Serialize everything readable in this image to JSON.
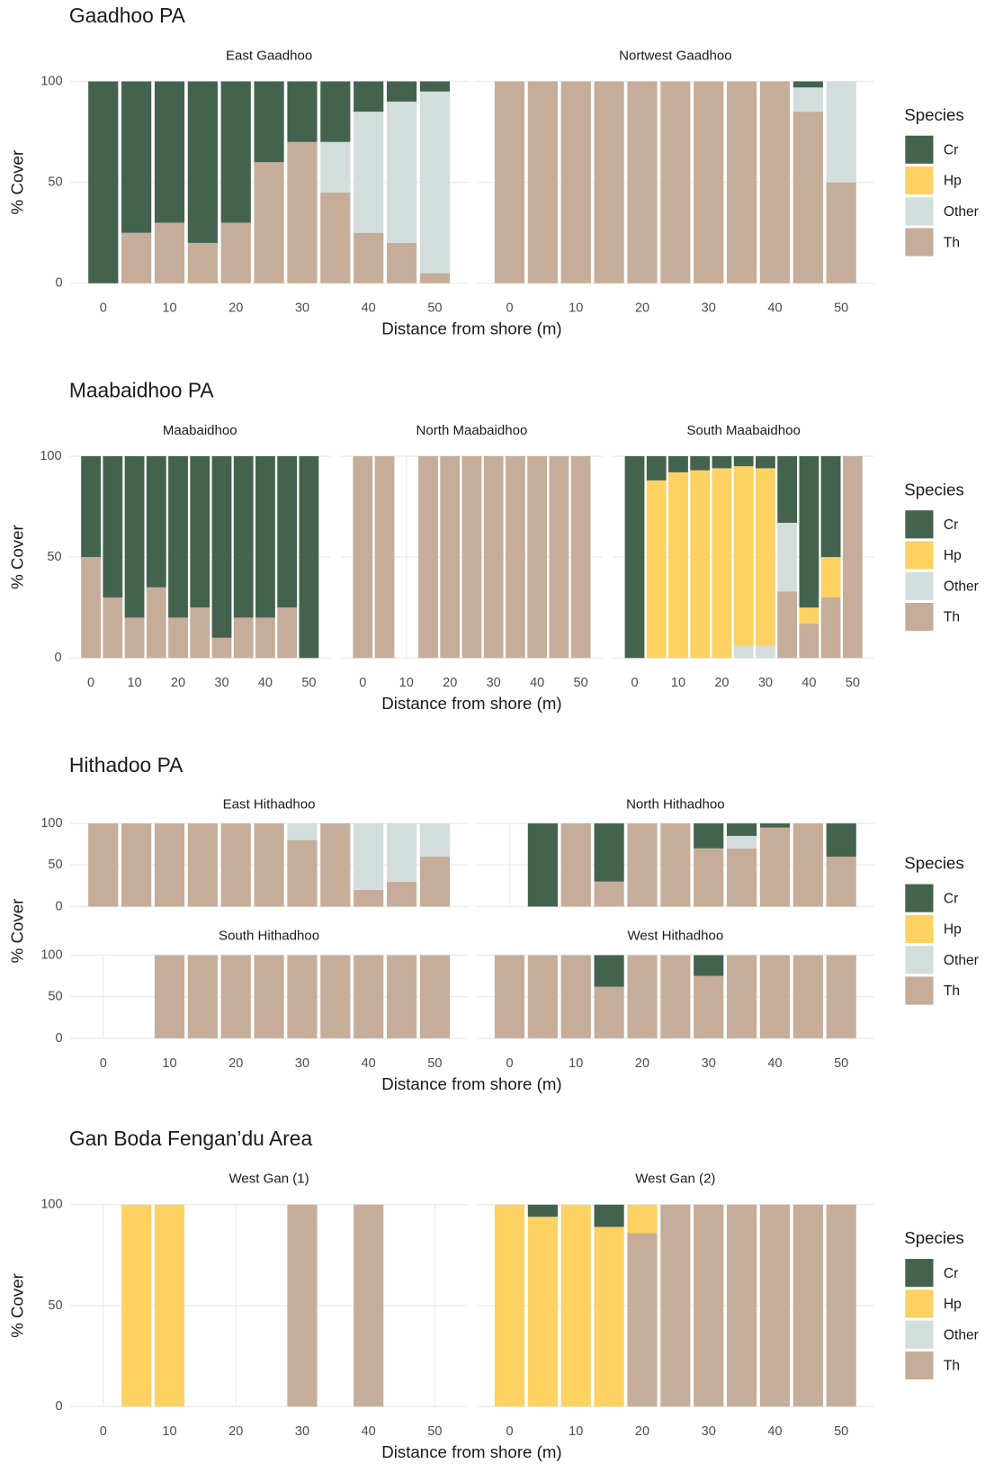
{
  "chart_data": [
    {
      "type": "stacked_bar",
      "title": "Gaadhoo PA",
      "x_label": "Distance from shore (m)",
      "y_label": "% Cover",
      "legend_title": "Species",
      "series": [
        {
          "name": "Cr",
          "color": "#44634f"
        },
        {
          "name": "Hp",
          "color": "#fdd162"
        },
        {
          "name": "Other",
          "color": "#d3dedc"
        },
        {
          "name": "Th",
          "color": "#c6ad99"
        }
      ],
      "xlim": [
        -5,
        55
      ],
      "xticks": [
        0,
        10,
        20,
        30,
        40,
        50
      ],
      "ylim": [
        0,
        100
      ],
      "yticks": [
        0,
        50,
        100
      ],
      "grid": true,
      "panels": [
        {
          "title": "East Gaadhoo",
          "x": [
            0,
            5,
            10,
            15,
            20,
            25,
            30,
            35,
            40,
            45,
            50
          ],
          "values": [
            [
              100,
              75,
              70,
              80,
              70,
              40,
              30,
              30,
              15,
              10,
              5
            ],
            [
              0,
              0,
              0,
              0,
              0,
              0,
              0,
              0,
              0,
              0,
              0
            ],
            [
              0,
              0,
              0,
              0,
              0,
              0,
              0,
              25,
              60,
              70,
              90
            ],
            [
              0,
              25,
              30,
              20,
              30,
              60,
              70,
              45,
              25,
              20,
              5
            ]
          ]
        },
        {
          "title": "Nortwest Gaadhoo",
          "x": [
            0,
            5,
            10,
            15,
            20,
            25,
            30,
            35,
            40,
            45,
            50
          ],
          "values": [
            [
              0,
              0,
              0,
              0,
              0,
              0,
              0,
              0,
              0,
              3,
              0
            ],
            [
              0,
              0,
              0,
              0,
              0,
              0,
              0,
              0,
              0,
              0,
              0
            ],
            [
              0,
              0,
              0,
              0,
              0,
              0,
              0,
              0,
              0,
              12,
              50
            ],
            [
              100,
              100,
              100,
              100,
              100,
              100,
              100,
              100,
              100,
              85,
              50
            ]
          ]
        }
      ]
    },
    {
      "type": "stacked_bar",
      "title": "Maabaidhoo PA",
      "x_label": "Distance from shore (m)",
      "y_label": "% Cover",
      "legend_title": "Species",
      "series": [
        {
          "name": "Cr",
          "color": "#44634f"
        },
        {
          "name": "Hp",
          "color": "#fdd162"
        },
        {
          "name": "Other",
          "color": "#d3dedc"
        },
        {
          "name": "Th",
          "color": "#c6ad99"
        }
      ],
      "xlim": [
        -5,
        55
      ],
      "xticks": [
        0,
        10,
        20,
        30,
        40,
        50
      ],
      "ylim": [
        0,
        100
      ],
      "yticks": [
        0,
        50,
        100
      ],
      "grid": true,
      "panels": [
        {
          "title": "Maabaidhoo",
          "x": [
            0,
            5,
            10,
            15,
            20,
            25,
            30,
            35,
            40,
            45,
            50
          ],
          "values": [
            [
              50,
              70,
              80,
              65,
              80,
              75,
              90,
              80,
              80,
              75,
              100
            ],
            [
              0,
              0,
              0,
              0,
              0,
              0,
              0,
              0,
              0,
              0,
              0
            ],
            [
              0,
              0,
              0,
              0,
              0,
              0,
              0,
              0,
              0,
              0,
              0
            ],
            [
              50,
              30,
              20,
              35,
              20,
              25,
              10,
              20,
              20,
              25,
              0
            ]
          ]
        },
        {
          "title": "North Maabaidhoo",
          "x": [
            0,
            5,
            10,
            15,
            20,
            25,
            30,
            35,
            40,
            45,
            50
          ],
          "values": [
            [
              0,
              0,
              null,
              0,
              0,
              0,
              0,
              0,
              0,
              0,
              0
            ],
            [
              0,
              0,
              null,
              0,
              0,
              0,
              0,
              0,
              0,
              0,
              0
            ],
            [
              0,
              0,
              null,
              0,
              0,
              0,
              0,
              0,
              0,
              0,
              0
            ],
            [
              100,
              100,
              null,
              100,
              100,
              100,
              100,
              100,
              100,
              100,
              100
            ]
          ]
        },
        {
          "title": "South Maabaidhoo",
          "x": [
            0,
            5,
            10,
            15,
            20,
            25,
            30,
            35,
            40,
            45,
            50
          ],
          "values": [
            [
              100,
              12,
              8,
              7,
              6,
              5,
              6,
              33,
              75,
              50,
              0
            ],
            [
              0,
              88,
              92,
              93,
              94,
              89,
              88,
              0,
              8,
              20,
              0
            ],
            [
              0,
              0,
              0,
              0,
              0,
              6,
              6,
              34,
              0,
              0,
              0
            ],
            [
              0,
              0,
              0,
              0,
              0,
              0,
              0,
              33,
              17,
              30,
              100
            ]
          ]
        }
      ]
    },
    {
      "type": "stacked_bar",
      "title": "Hithadoo PA",
      "x_label": "Distance from shore (m)",
      "y_label": "% Cover",
      "legend_title": "Species",
      "series": [
        {
          "name": "Cr",
          "color": "#44634f"
        },
        {
          "name": "Hp",
          "color": "#fdd162"
        },
        {
          "name": "Other",
          "color": "#d3dedc"
        },
        {
          "name": "Th",
          "color": "#c6ad99"
        }
      ],
      "xlim": [
        -5,
        55
      ],
      "xticks": [
        0,
        10,
        20,
        30,
        40,
        50
      ],
      "ylim": [
        0,
        100
      ],
      "yticks": [
        0,
        50,
        100
      ],
      "grid": true,
      "panels": [
        {
          "title": "East Hithadhoo",
          "x": [
            0,
            5,
            10,
            15,
            20,
            25,
            30,
            35,
            40,
            45,
            50
          ],
          "values": [
            [
              0,
              0,
              0,
              0,
              0,
              0,
              0,
              0,
              0,
              0,
              0
            ],
            [
              0,
              0,
              0,
              0,
              0,
              0,
              0,
              0,
              0,
              0,
              0
            ],
            [
              0,
              0,
              0,
              0,
              0,
              0,
              20,
              0,
              80,
              70,
              40
            ],
            [
              100,
              100,
              100,
              100,
              100,
              100,
              80,
              100,
              20,
              30,
              60
            ]
          ]
        },
        {
          "title": "North Hithadhoo",
          "x": [
            0,
            5,
            10,
            15,
            20,
            25,
            30,
            35,
            40,
            45,
            50
          ],
          "values": [
            [
              null,
              100,
              0,
              70,
              0,
              0,
              30,
              15,
              5,
              0,
              40
            ],
            [
              null,
              0,
              0,
              0,
              0,
              0,
              0,
              0,
              0,
              0,
              0
            ],
            [
              null,
              0,
              0,
              0,
              0,
              0,
              0,
              15,
              0,
              0,
              0
            ],
            [
              null,
              0,
              100,
              30,
              100,
              100,
              70,
              70,
              95,
              100,
              60
            ]
          ]
        },
        {
          "title": "South Hithadhoo",
          "x": [
            0,
            5,
            10,
            15,
            20,
            25,
            30,
            35,
            40,
            45,
            50
          ],
          "values": [
            [
              null,
              null,
              0,
              0,
              0,
              0,
              0,
              0,
              0,
              0,
              0
            ],
            [
              null,
              null,
              0,
              0,
              0,
              0,
              0,
              0,
              0,
              0,
              0
            ],
            [
              null,
              null,
              0,
              0,
              0,
              0,
              0,
              0,
              0,
              0,
              0
            ],
            [
              null,
              null,
              100,
              100,
              100,
              100,
              100,
              100,
              100,
              100,
              100
            ]
          ]
        },
        {
          "title": "West Hithadhoo",
          "x": [
            0,
            5,
            10,
            15,
            20,
            25,
            30,
            35,
            40,
            45,
            50
          ],
          "values": [
            [
              0,
              0,
              0,
              38,
              0,
              0,
              25,
              0,
              0,
              0,
              0
            ],
            [
              0,
              0,
              0,
              0,
              0,
              0,
              0,
              0,
              0,
              0,
              0
            ],
            [
              0,
              0,
              0,
              0,
              0,
              0,
              0,
              0,
              0,
              0,
              0
            ],
            [
              100,
              100,
              100,
              62,
              100,
              100,
              75,
              100,
              100,
              100,
              100
            ]
          ]
        }
      ]
    },
    {
      "type": "stacked_bar",
      "title": "Gan Boda Fengan’du Area",
      "x_label": "Distance from shore (m)",
      "y_label": "% Cover",
      "legend_title": "Species",
      "series": [
        {
          "name": "Cr",
          "color": "#44634f"
        },
        {
          "name": "Hp",
          "color": "#fdd162"
        },
        {
          "name": "Other",
          "color": "#d3dedc"
        },
        {
          "name": "Th",
          "color": "#c6ad99"
        }
      ],
      "xlim": [
        -5,
        55
      ],
      "xticks": [
        0,
        10,
        20,
        30,
        40,
        50
      ],
      "ylim": [
        0,
        100
      ],
      "yticks": [
        0,
        50,
        100
      ],
      "grid": true,
      "panels": [
        {
          "title": "West Gan (1)",
          "x": [
            0,
            5,
            10,
            15,
            20,
            25,
            30,
            35,
            40,
            45,
            50
          ],
          "values": [
            [
              null,
              0,
              0,
              null,
              null,
              null,
              0,
              null,
              0,
              null,
              null
            ],
            [
              null,
              100,
              100,
              null,
              null,
              null,
              0,
              null,
              0,
              null,
              null
            ],
            [
              null,
              0,
              0,
              null,
              null,
              null,
              0,
              null,
              0,
              null,
              null
            ],
            [
              null,
              0,
              0,
              null,
              null,
              null,
              100,
              null,
              100,
              null,
              null
            ]
          ]
        },
        {
          "title": "West Gan (2)",
          "x": [
            0,
            5,
            10,
            15,
            20,
            25,
            30,
            35,
            40,
            45,
            50
          ],
          "values": [
            [
              0,
              6,
              0,
              11,
              0,
              0,
              0,
              0,
              0,
              0,
              0
            ],
            [
              100,
              94,
              100,
              89,
              14,
              0,
              0,
              0,
              0,
              0,
              0
            ],
            [
              0,
              0,
              0,
              0,
              0,
              0,
              0,
              0,
              0,
              0,
              0
            ],
            [
              0,
              0,
              0,
              0,
              86,
              100,
              100,
              100,
              100,
              100,
              100
            ]
          ]
        }
      ]
    }
  ]
}
